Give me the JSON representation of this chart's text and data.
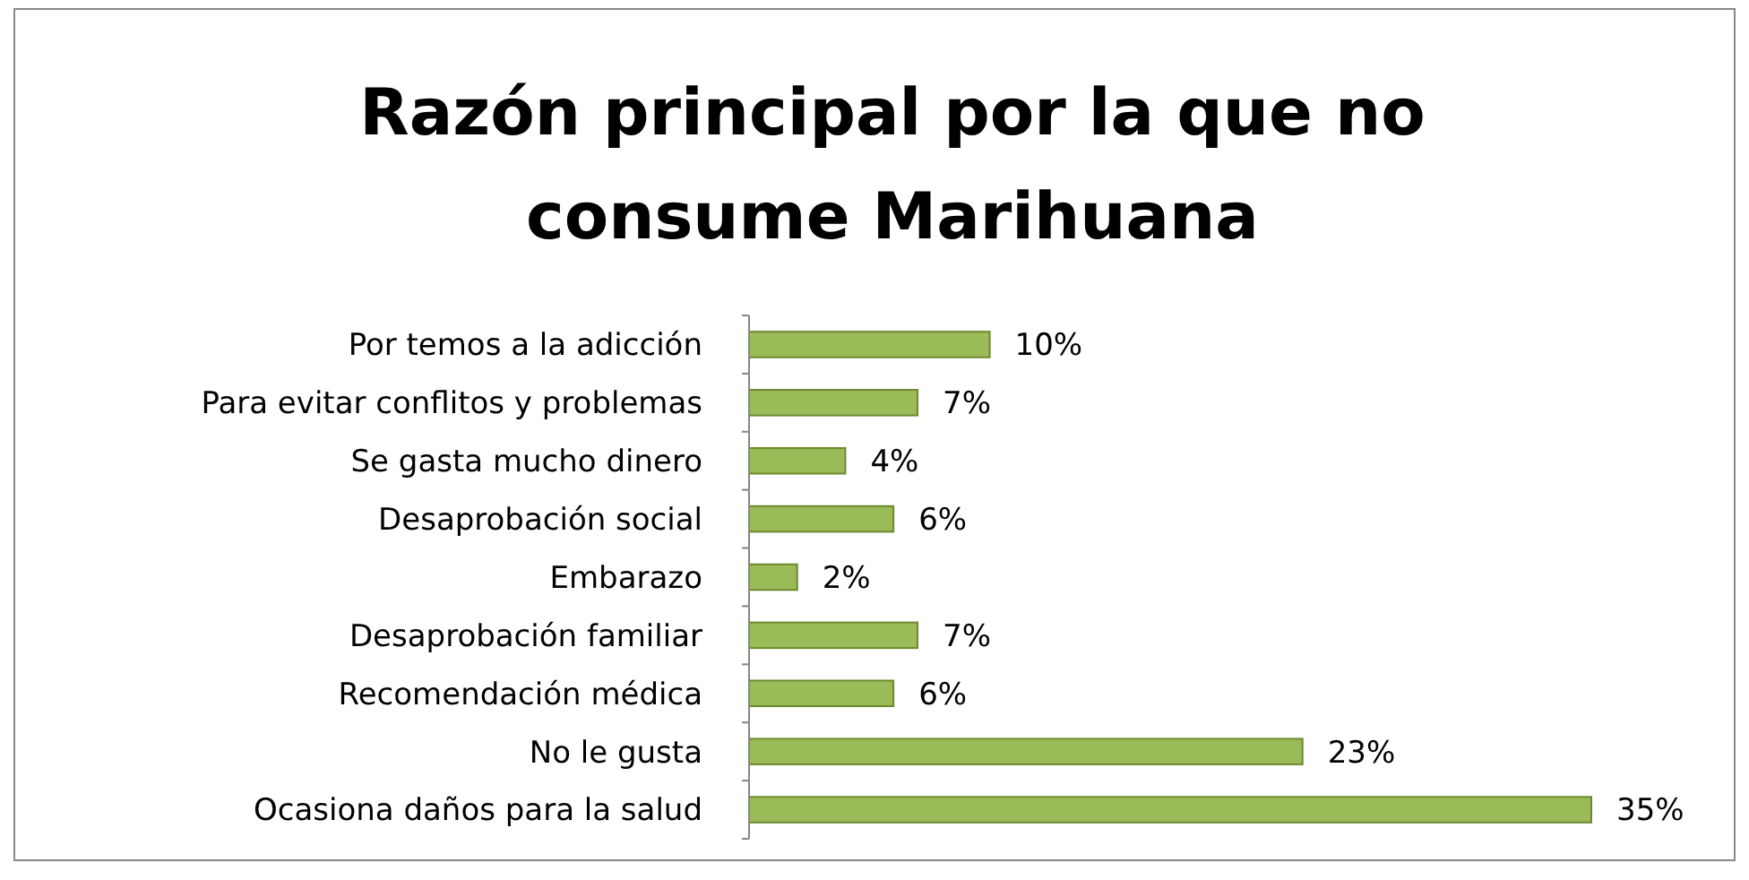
{
  "chart_data": {
    "type": "bar",
    "orientation": "horizontal",
    "title": "Razón principal por la que no consume Marihuana",
    "categories": [
      "Por temos a la adicción",
      "Para evitar conflitos y problemas",
      "Se gasta mucho dinero",
      "Desaprobación social",
      "Embarazo",
      "Desaprobación familiar",
      "Recomendación médica",
      "No le gusta",
      "Ocasiona daños para la salud"
    ],
    "values": [
      10,
      7,
      4,
      6,
      2,
      7,
      6,
      23,
      35
    ],
    "value_labels": [
      "10%",
      "7%",
      "4%",
      "6%",
      "2%",
      "7%",
      "6%",
      "23%",
      "35%"
    ],
    "color": "#9bbb59",
    "xlim": [
      0,
      35
    ],
    "tick_labels": "y"
  }
}
